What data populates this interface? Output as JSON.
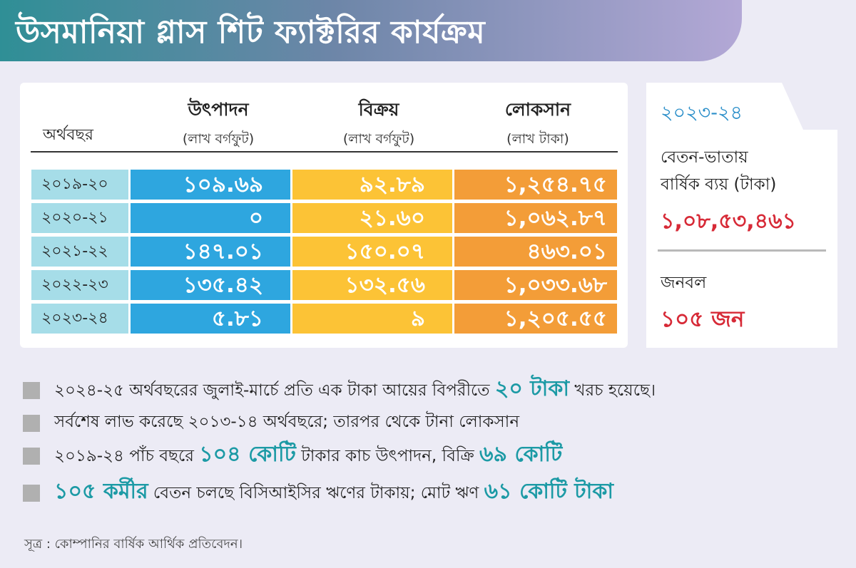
{
  "title": "উসমানিয়া গ্লাস শিট ফ্যাক্টরির কার্যক্রম",
  "table": {
    "headers": {
      "year": "অর্থবছর",
      "production": "উৎপাদন",
      "production_unit": "(লাখ বর্গফুট)",
      "sales": "বিক্রয়",
      "sales_unit": "(লাখ বর্গফুট)",
      "loss": "লোকসান",
      "loss_unit": "(লাখ টাকা)"
    },
    "rows": [
      {
        "year": "২০১৯-২০",
        "production": "১০৯.৬৯",
        "sales": "৯২.৮৯",
        "loss": "১,২৫৪.৭৫"
      },
      {
        "year": "২০২০-২১",
        "production": "০",
        "sales": "২১.৬০",
        "loss": "১,০৬২.৮৭"
      },
      {
        "year": "২০২১-২২",
        "production": "১৪৭.০১",
        "sales": "১৫০.০৭",
        "loss": "৪৬৩.০১"
      },
      {
        "year": "২০২২-২৩",
        "production": "১৩৫.৪২",
        "sales": "১৩২.৫৬",
        "loss": "১,০৩৩.৬৮"
      },
      {
        "year": "২০২৩-২৪",
        "production": "৫.৮১",
        "sales": "৯",
        "loss": "১,২০৫.৫৫"
      }
    ]
  },
  "sidebar": {
    "year": "২০২৩-২৪",
    "salary_label_line1": "বেতন-ভাতায়",
    "salary_label_line2": "বার্ষিক ব্যয় (টাকা)",
    "salary_value": "১,০৮,৫৩,৪৬১",
    "staff_label": "জনবল",
    "staff_value": "১০৫ জন"
  },
  "bullets": [
    {
      "pre": "২০২৪-২৫ অর্থবছরের জুলাই-মার্চে প্রতি এক টাকা আয়ের বিপরীতে ",
      "hl1": "২০ টাকা",
      "mid": " খরচ হয়েছে।",
      "hl2": "",
      "post": ""
    },
    {
      "pre": "সর্বশেষ লাভ করেছে ২০১৩-১৪ অর্থবছরে; তারপর থেকে টানা লোকসান",
      "hl1": "",
      "mid": "",
      "hl2": "",
      "post": ""
    },
    {
      "pre": "২০১৯-২৪ পাঁচ বছরে ",
      "hl1": "১০৪ কোটি",
      "mid": " টাকার কাচ উৎপাদন, বিক্রি ",
      "hl2": "৬৯ কোটি",
      "post": ""
    },
    {
      "pre": "",
      "hl1": "১০৫ কর্মীর",
      "mid": " বেতন চলছে বিসিআইসির ঋণের টাকায়; মোট ঋণ ",
      "hl2": "৬১ কোটি টাকা",
      "post": ""
    }
  ],
  "source": "সূত্র : কোম্পানির বার্ষিক আর্থিক প্রতিবেদন।",
  "colors": {
    "year_cell": "#a6dde8",
    "production": "#2ea6df",
    "sales": "#fcc336",
    "loss": "#f39d38",
    "highlight_red": "#d72a37",
    "highlight_teal": "#1c9aa5"
  }
}
